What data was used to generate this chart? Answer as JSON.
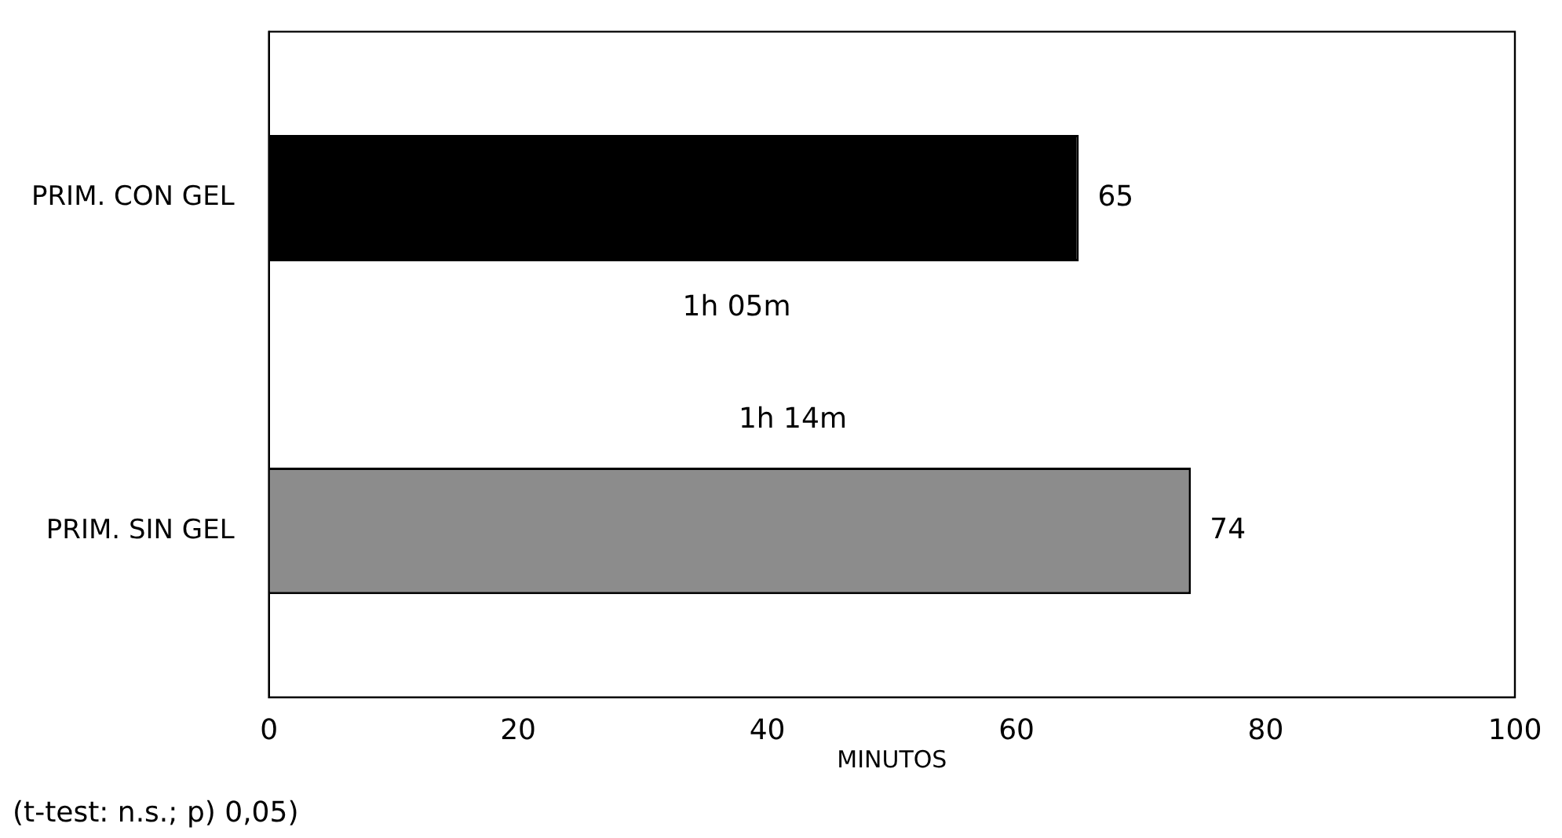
{
  "chart_data": {
    "type": "bar",
    "orientation": "horizontal",
    "categories": [
      "PRIM. CON GEL",
      "PRIM. SIN GEL"
    ],
    "values": [
      65,
      74
    ],
    "colors": [
      "#000000",
      "#8c8c8c"
    ],
    "xlim": [
      0,
      100
    ],
    "xticks": [
      0,
      20,
      40,
      60,
      80,
      100
    ],
    "xlabel": "MINUTOS",
    "grid": false,
    "legend": false,
    "data_labels": true,
    "annotations": [
      "1h 05m",
      "1h 14m",
      "(t-test: n.s.; p) 0,05)"
    ]
  }
}
